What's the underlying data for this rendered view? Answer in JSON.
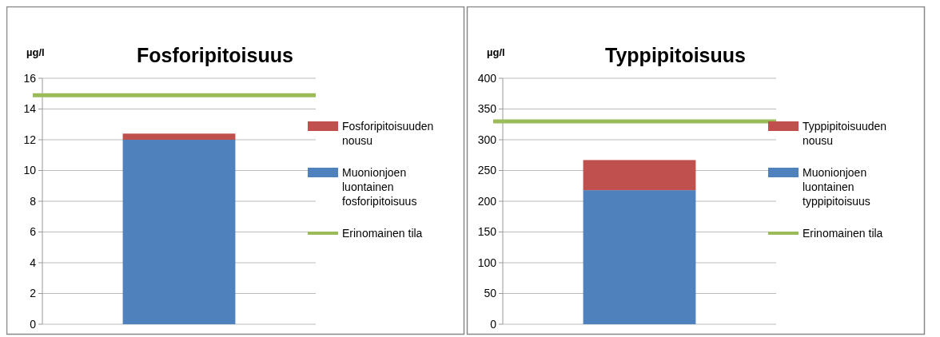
{
  "chart_data": [
    {
      "type": "bar",
      "title": "Fosforipitoisuus",
      "ylabel": "µg/l",
      "stacked": true,
      "categories": [
        null
      ],
      "series": [
        {
          "name": "Muonionjoen luontainen fosforipitoisuus",
          "color": "#4f81bd",
          "values": [
            12
          ]
        },
        {
          "name": "Fosforipitoisuuden nousu",
          "color": "#c0504d",
          "values": [
            0.4
          ]
        }
      ],
      "ref_lines": [
        {
          "axis": "y",
          "value": 14.9,
          "label": "Erinomainen tila",
          "color": "#9bbb59"
        }
      ],
      "ylim": [
        0,
        16
      ],
      "yticks": [
        0,
        2,
        4,
        6,
        8,
        10,
        12,
        14,
        16
      ],
      "grid": "y",
      "legend": "right"
    },
    {
      "type": "bar",
      "title": "Typpipitoisuus",
      "ylabel": "µg/l",
      "stacked": true,
      "categories": [
        null
      ],
      "series": [
        {
          "name": "Muonionjoen luontainen typpipitoisuus",
          "color": "#4f81bd",
          "values": [
            218
          ]
        },
        {
          "name": "Typpipitoisuuden nousu",
          "color": "#c0504d",
          "values": [
            49
          ]
        }
      ],
      "ref_lines": [
        {
          "axis": "y",
          "value": 330,
          "label": "Erinomainen tila",
          "color": "#9bbb59"
        }
      ],
      "ylim": [
        0,
        400
      ],
      "yticks": [
        0,
        50,
        100,
        150,
        200,
        250,
        300,
        350,
        400
      ],
      "grid": "y",
      "legend": "right"
    }
  ]
}
